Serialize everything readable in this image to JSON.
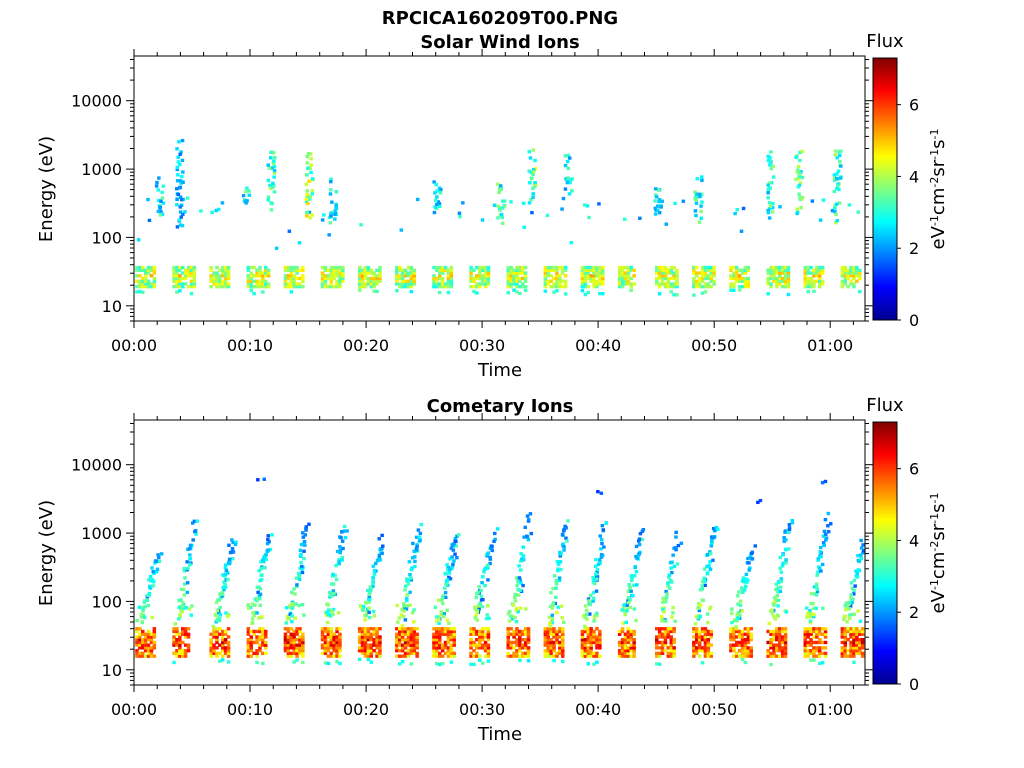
{
  "figure": {
    "title": "RPCICA160209T00.PNG"
  },
  "chart_data": [
    {
      "type": "heatmap",
      "title": "Solar Wind Ions",
      "xlabel": "Time",
      "ylabel": "Energy (eV)",
      "x_tick_labels": [
        "00:00",
        "00:10",
        "00:20",
        "00:30",
        "00:40",
        "00:50",
        "01:00"
      ],
      "x_ticks_min": [
        0,
        10,
        20,
        30,
        40,
        50,
        60
      ],
      "xlim_min": [
        0,
        63
      ],
      "y_scale": "log",
      "y_tick_labels": [
        "10",
        "100",
        "1000",
        "10000"
      ],
      "y_ticks": [
        10,
        100,
        1000,
        10000
      ],
      "ylim": [
        6,
        45000
      ],
      "colorbar": {
        "label": "Flux",
        "unit_label": "eV-1cm-2sr-1s-1",
        "tick_labels": [
          "0",
          "2",
          "4",
          "6"
        ],
        "ticks": [
          0,
          2,
          4,
          6
        ],
        "range": [
          0,
          7.3
        ],
        "colormap": "jet"
      },
      "sweep_period_min": 3.2,
      "low_band": {
        "energy_range": [
          18,
          36
        ],
        "flux_range": [
          2.4,
          5.3
        ]
      },
      "seed": 11,
      "bursts": [
        {
          "t": 2.1,
          "e": [
            200,
            700
          ],
          "f": 2.7
        },
        {
          "t": 3.8,
          "e": [
            120,
            2500
          ],
          "f": 2.2
        },
        {
          "t": 9.5,
          "e": [
            300,
            600
          ],
          "f": 2.8
        },
        {
          "t": 11.7,
          "e": [
            200,
            1700
          ],
          "f": 3.2
        },
        {
          "t": 15.0,
          "e": [
            150,
            1800
          ],
          "f": 3.8
        },
        {
          "t": 17.0,
          "e": [
            150,
            700
          ],
          "f": 2.8
        },
        {
          "t": 26.0,
          "e": [
            200,
            700
          ],
          "f": 2.6
        },
        {
          "t": 31.5,
          "e": [
            150,
            600
          ],
          "f": 3.0
        },
        {
          "t": 34.2,
          "e": [
            300,
            1800
          ],
          "f": 3.5
        },
        {
          "t": 37.3,
          "e": [
            400,
            1500
          ],
          "f": 2.6
        },
        {
          "t": 45.0,
          "e": [
            150,
            500
          ],
          "f": 2.7
        },
        {
          "t": 48.5,
          "e": [
            150,
            900
          ],
          "f": 2.9
        },
        {
          "t": 54.7,
          "e": [
            200,
            1800
          ],
          "f": 2.9
        },
        {
          "t": 57.2,
          "e": [
            200,
            1800
          ],
          "f": 3.3
        },
        {
          "t": 60.5,
          "e": [
            150,
            1800
          ],
          "f": 3.1
        }
      ],
      "intensity": "solar"
    },
    {
      "type": "heatmap",
      "title": "Cometary Ions",
      "xlabel": "Time",
      "ylabel": "Energy (eV)",
      "x_tick_labels": [
        "00:00",
        "00:10",
        "00:20",
        "00:30",
        "00:40",
        "00:50",
        "01:00"
      ],
      "x_ticks_min": [
        0,
        10,
        20,
        30,
        40,
        50,
        60
      ],
      "xlim_min": [
        0,
        63
      ],
      "y_scale": "log",
      "y_tick_labels": [
        "10",
        "100",
        "1000",
        "10000"
      ],
      "y_ticks": [
        10,
        100,
        1000,
        10000
      ],
      "ylim": [
        6,
        45000
      ],
      "colorbar": {
        "label": "Flux",
        "unit_label": "eV-1cm-2sr-1s-1",
        "tick_labels": [
          "0",
          "2",
          "4",
          "6"
        ],
        "ticks": [
          0,
          2,
          4,
          6
        ],
        "range": [
          0,
          7.3
        ],
        "colormap": "jet"
      },
      "sweep_period_min": 3.2,
      "low_band": {
        "energy_range": [
          15,
          40
        ],
        "flux_range": [
          3.8,
          7.0
        ]
      },
      "seed": 29,
      "bursts": [
        {
          "t": 10.8,
          "e": [
            5500,
            5900
          ],
          "f": 1.5
        },
        {
          "t": 40.0,
          "e": [
            3500,
            3900
          ],
          "f": 1.5
        },
        {
          "t": 53.8,
          "e": [
            2600,
            2900
          ],
          "f": 1.5
        },
        {
          "t": 59.5,
          "e": [
            5000,
            5400
          ],
          "f": 1.5
        }
      ],
      "intensity": "cometary"
    }
  ]
}
